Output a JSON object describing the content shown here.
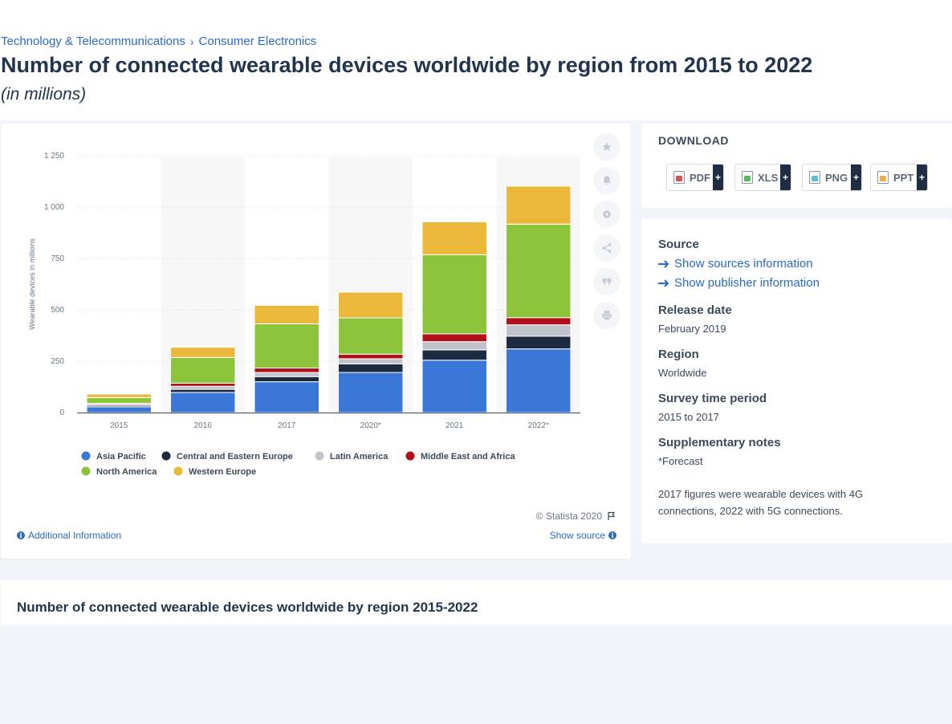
{
  "breadcrumb": {
    "items": [
      "Technology & Telecommunications",
      "Consumer Electronics"
    ],
    "separator": "›"
  },
  "title": "Number of connected wearable devices worldwide by region from 2015 to 2022",
  "subtitle": "(in millions)",
  "chart_data": {
    "type": "bar",
    "stacked": true,
    "categories": [
      "2015",
      "2016",
      "2017",
      "2020*",
      "2021",
      "2022*"
    ],
    "ylabel": "Wearable devices in millions",
    "xlabel": "",
    "ylim": [
      0,
      1250
    ],
    "yticks": [
      0,
      250,
      500,
      750,
      1000,
      1250
    ],
    "ytick_labels": [
      "0",
      "250",
      "500",
      "750",
      "1 000",
      "1 250"
    ],
    "grid": true,
    "legend_position": "bottom",
    "series": [
      {
        "name": "Asia Pacific",
        "color": "#3a78d8",
        "values": [
          28,
          98,
          150,
          195,
          255,
          310
        ]
      },
      {
        "name": "Central and Eastern Europe",
        "color": "#1b2a40",
        "values": [
          7,
          15,
          25,
          42,
          50,
          62
        ]
      },
      {
        "name": "Latin America",
        "color": "#c0c4ca",
        "values": [
          5,
          15,
          20,
          25,
          40,
          55
        ]
      },
      {
        "name": "Middle East and Africa",
        "color": "#b0101a",
        "values": [
          5,
          15,
          22,
          22,
          38,
          35
        ]
      },
      {
        "name": "North America",
        "color": "#8cc43c",
        "values": [
          28,
          125,
          215,
          177,
          385,
          455
        ]
      },
      {
        "name": "Western Europe",
        "color": "#ecb83a",
        "values": [
          17,
          50,
          90,
          125,
          160,
          185
        ]
      }
    ]
  },
  "toolbar": {
    "icons": [
      "star-icon",
      "bell-icon",
      "gear-icon",
      "share-icon",
      "quote-icon",
      "print-icon"
    ]
  },
  "chart_footer": {
    "copyright": "© Statista 2020",
    "additional_info": "Additional Information",
    "show_source": "Show source"
  },
  "download": {
    "title": "DOWNLOAD",
    "buttons": [
      {
        "label": "PDF",
        "color": "#d9534f"
      },
      {
        "label": "XLS",
        "color": "#5cb85c"
      },
      {
        "label": "PNG",
        "color": "#5bc0de"
      },
      {
        "label": "PPT",
        "color": "#f0ad4e"
      }
    ],
    "plus": "+"
  },
  "meta": {
    "source_heading": "Source",
    "show_sources": "Show sources information",
    "show_publisher": "Show publisher information",
    "release_heading": "Release date",
    "release_value": "February 2019",
    "region_heading": "Region",
    "region_value": "Worldwide",
    "survey_heading": "Survey time period",
    "survey_value": "2015 to 2017",
    "supp_heading": "Supplementary notes",
    "supp_forecast": "*Forecast",
    "supp_note": "2017 figures were wearable devices with 4G connections, 2022 with 5G connections."
  },
  "related": {
    "title": "Number of connected wearable devices worldwide by region 2015-2022"
  },
  "colors": {
    "accent": "#2a6ac4",
    "title": "#22354f"
  }
}
